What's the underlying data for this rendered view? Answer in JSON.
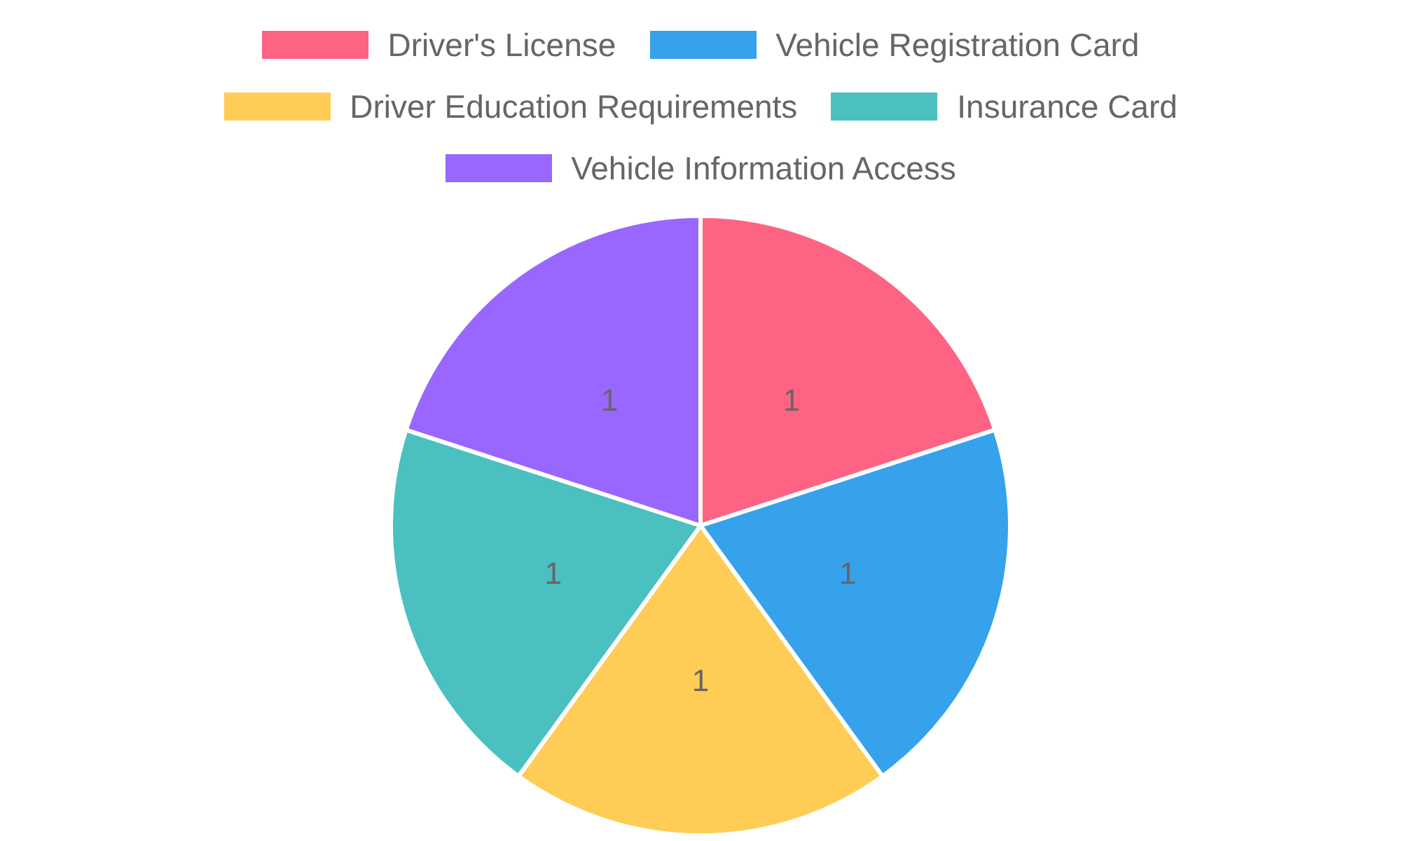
{
  "chart_data": {
    "type": "pie",
    "categories": [
      "Driver's License",
      "Vehicle Registration Card",
      "Driver Education Requirements",
      "Insurance Card",
      "Vehicle Information Access"
    ],
    "values": [
      1,
      1,
      1,
      1,
      1
    ],
    "colors": [
      "#ff6384",
      "#36a2eb",
      "#ffcd56",
      "#4bc0c0",
      "#9966ff"
    ],
    "data_labels": true,
    "legend": "top"
  }
}
